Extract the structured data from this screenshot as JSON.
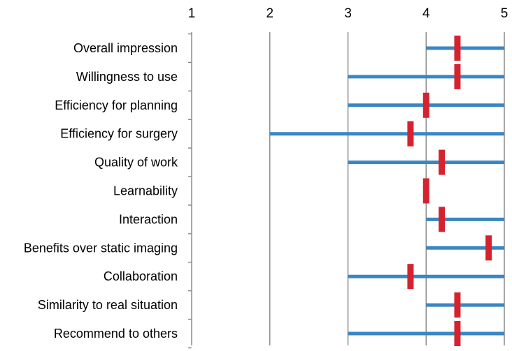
{
  "chart_data": {
    "type": "range",
    "orientation": "horizontal",
    "xlim": [
      1,
      5
    ],
    "x_ticks": [
      1,
      2,
      3,
      4,
      5
    ],
    "grid": true,
    "range_color": "#3a86c4",
    "mean_color": "#d4232e",
    "rows": [
      {
        "label": "Overall impression",
        "min": 4,
        "max": 5,
        "mean": 4.4
      },
      {
        "label": "Willingness to use",
        "min": 3,
        "max": 5,
        "mean": 4.4
      },
      {
        "label": "Efficiency for planning",
        "min": 3,
        "max": 5,
        "mean": 4.0
      },
      {
        "label": "Efficiency for surgery",
        "min": 2,
        "max": 5,
        "mean": 3.8
      },
      {
        "label": "Quality of work",
        "min": 3,
        "max": 5,
        "mean": 4.2
      },
      {
        "label": "Learnability",
        "min": 4,
        "max": 4,
        "mean": 4.0
      },
      {
        "label": "Interaction",
        "min": 4,
        "max": 5,
        "mean": 4.2
      },
      {
        "label": "Benefits over static imaging",
        "min": 4,
        "max": 5,
        "mean": 4.8
      },
      {
        "label": "Collaboration",
        "min": 3,
        "max": 5,
        "mean": 3.8
      },
      {
        "label": "Similarity to real situation",
        "min": 4,
        "max": 5,
        "mean": 4.4
      },
      {
        "label": "Recommend to others",
        "min": 3,
        "max": 5,
        "mean": 4.4
      }
    ]
  }
}
